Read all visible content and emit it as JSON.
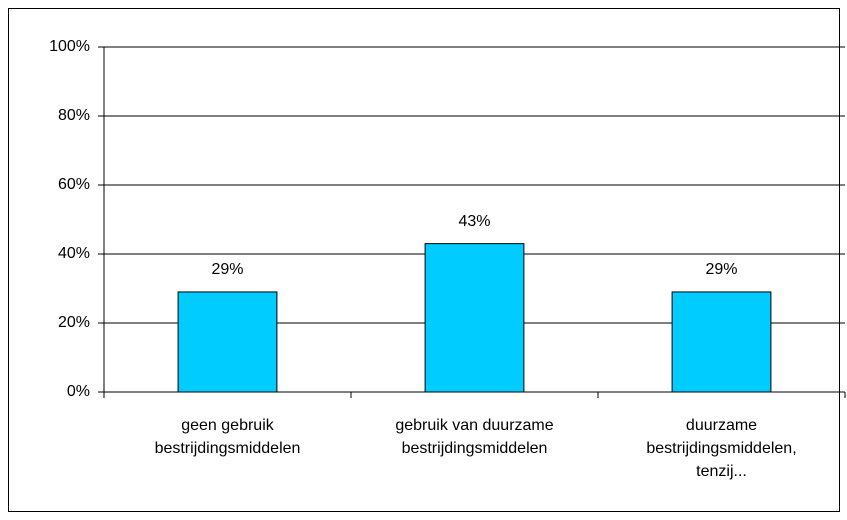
{
  "chart_data": {
    "type": "bar",
    "categories": [
      "geen gebruik\nbestrijdingsmiddelen",
      "gebruik van duurzame\nbestrijdingsmiddelen",
      "duurzame\nbestrijdingsmiddelen,\ntenzij..."
    ],
    "values": [
      29,
      43,
      29
    ],
    "value_labels": [
      "29%",
      "43%",
      "29%"
    ],
    "color": "#00ccff",
    "ylim": [
      0,
      100
    ],
    "yticks": [
      {
        "value": 0,
        "label": "0%"
      },
      {
        "value": 20,
        "label": "20%"
      },
      {
        "value": 40,
        "label": "40%"
      },
      {
        "value": 60,
        "label": "60%"
      },
      {
        "value": 80,
        "label": "80%"
      },
      {
        "value": 100,
        "label": "100%"
      }
    ],
    "grid": true
  }
}
